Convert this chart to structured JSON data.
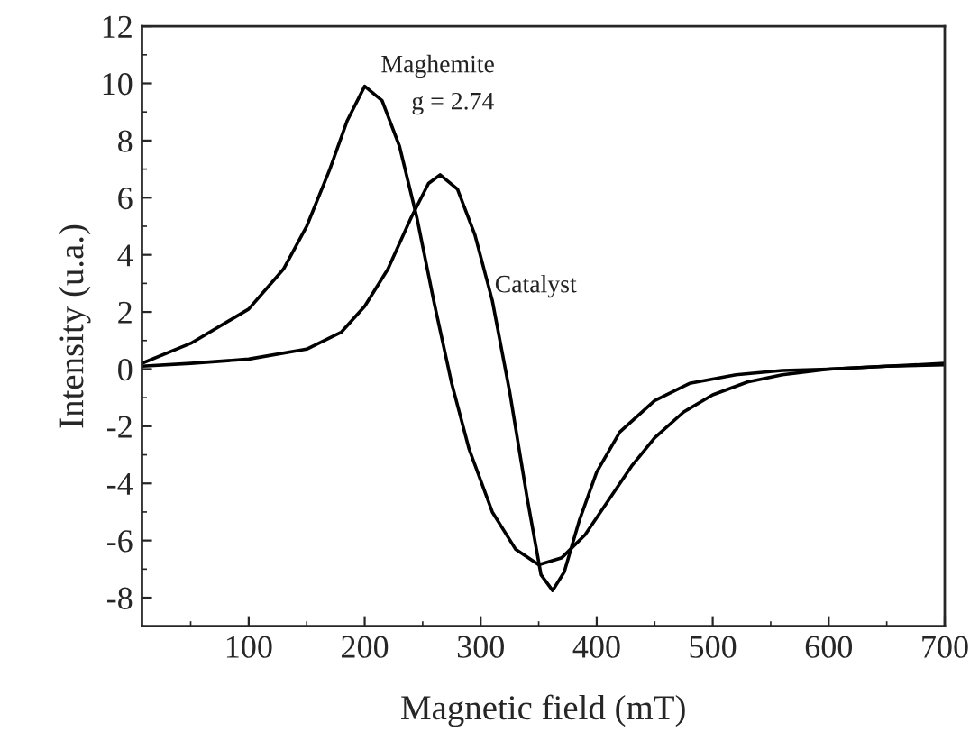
{
  "chart_data": {
    "type": "line",
    "xlabel": "Magnetic field (mT)",
    "ylabel": "Intensity (u.a.)",
    "xlim": [
      8,
      700
    ],
    "xticks": [
      100,
      200,
      300,
      400,
      500,
      600,
      700
    ],
    "ylim": [
      -9,
      12
    ],
    "yticks": [
      -8,
      -6,
      -4,
      -2,
      0,
      2,
      4,
      6,
      8,
      10,
      12
    ],
    "grid": false,
    "legend": false,
    "marker": "none",
    "line_style": "solid",
    "annotations": [
      "g = 2.74"
    ],
    "series": [
      {
        "name": "Maghemite",
        "color": "#000000",
        "x": [
          8,
          50,
          100,
          130,
          150,
          170,
          185,
          200,
          215,
          230,
          245,
          260,
          275,
          290,
          310,
          330,
          350,
          370,
          390,
          410,
          430,
          450,
          475,
          500,
          530,
          560,
          600,
          650,
          700
        ],
        "values": [
          0.2,
          0.9,
          2.1,
          3.5,
          5,
          7,
          8.7,
          9.9,
          9.4,
          7.8,
          5.3,
          2.3,
          -0.5,
          -2.8,
          -5,
          -6.3,
          -6.85,
          -6.6,
          -5.8,
          -4.6,
          -3.4,
          -2.4,
          -1.5,
          -0.9,
          -0.45,
          -0.2,
          0,
          0.1,
          0.15
        ]
      },
      {
        "name": "Catalyst",
        "color": "#000000",
        "x": [
          8,
          50,
          100,
          150,
          180,
          200,
          220,
          240,
          255,
          265,
          280,
          295,
          310,
          325,
          340,
          352,
          362,
          372,
          385,
          400,
          420,
          450,
          480,
          520,
          560,
          600,
          650,
          700
        ],
        "values": [
          0.1,
          0.2,
          0.35,
          0.7,
          1.3,
          2.2,
          3.5,
          5.3,
          6.5,
          6.8,
          6.3,
          4.7,
          2.4,
          -0.8,
          -4.5,
          -7.2,
          -7.75,
          -7.1,
          -5.3,
          -3.6,
          -2.2,
          -1.1,
          -0.5,
          -0.2,
          -0.05,
          0,
          0.1,
          0.2
        ]
      }
    ]
  }
}
